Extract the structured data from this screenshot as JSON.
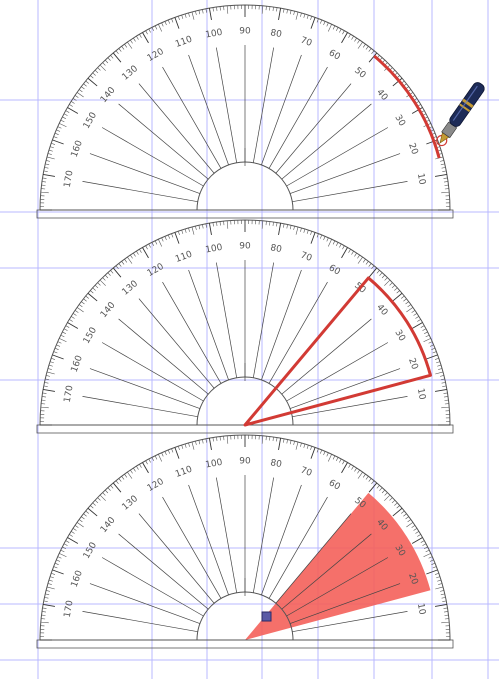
{
  "colors": {
    "grid": "#b9b9ff",
    "protractor_lines": "#444444",
    "highlight_stroke": "#d23a34",
    "highlight_fill": "#f4605a",
    "point_marker": "#5a5aa6"
  },
  "icons": [
    "fountain-pen-icon"
  ],
  "protractors": [
    {
      "name": "protractor-arc-traced",
      "highlight": "arc",
      "arc_from_deg": 15,
      "arc_to_deg": 50
    },
    {
      "name": "protractor-sector-outlined",
      "highlight": "sector-outline",
      "arc_from_deg": 15,
      "arc_to_deg": 50
    },
    {
      "name": "protractor-sector-filled",
      "highlight": "sector-filled",
      "arc_from_deg": 15,
      "arc_to_deg": 50
    }
  ],
  "degree_labels": [
    "10",
    "20",
    "30",
    "40",
    "50",
    "60",
    "70",
    "80",
    "90",
    "100",
    "110",
    "120",
    "130",
    "140",
    "150",
    "160",
    "170"
  ]
}
